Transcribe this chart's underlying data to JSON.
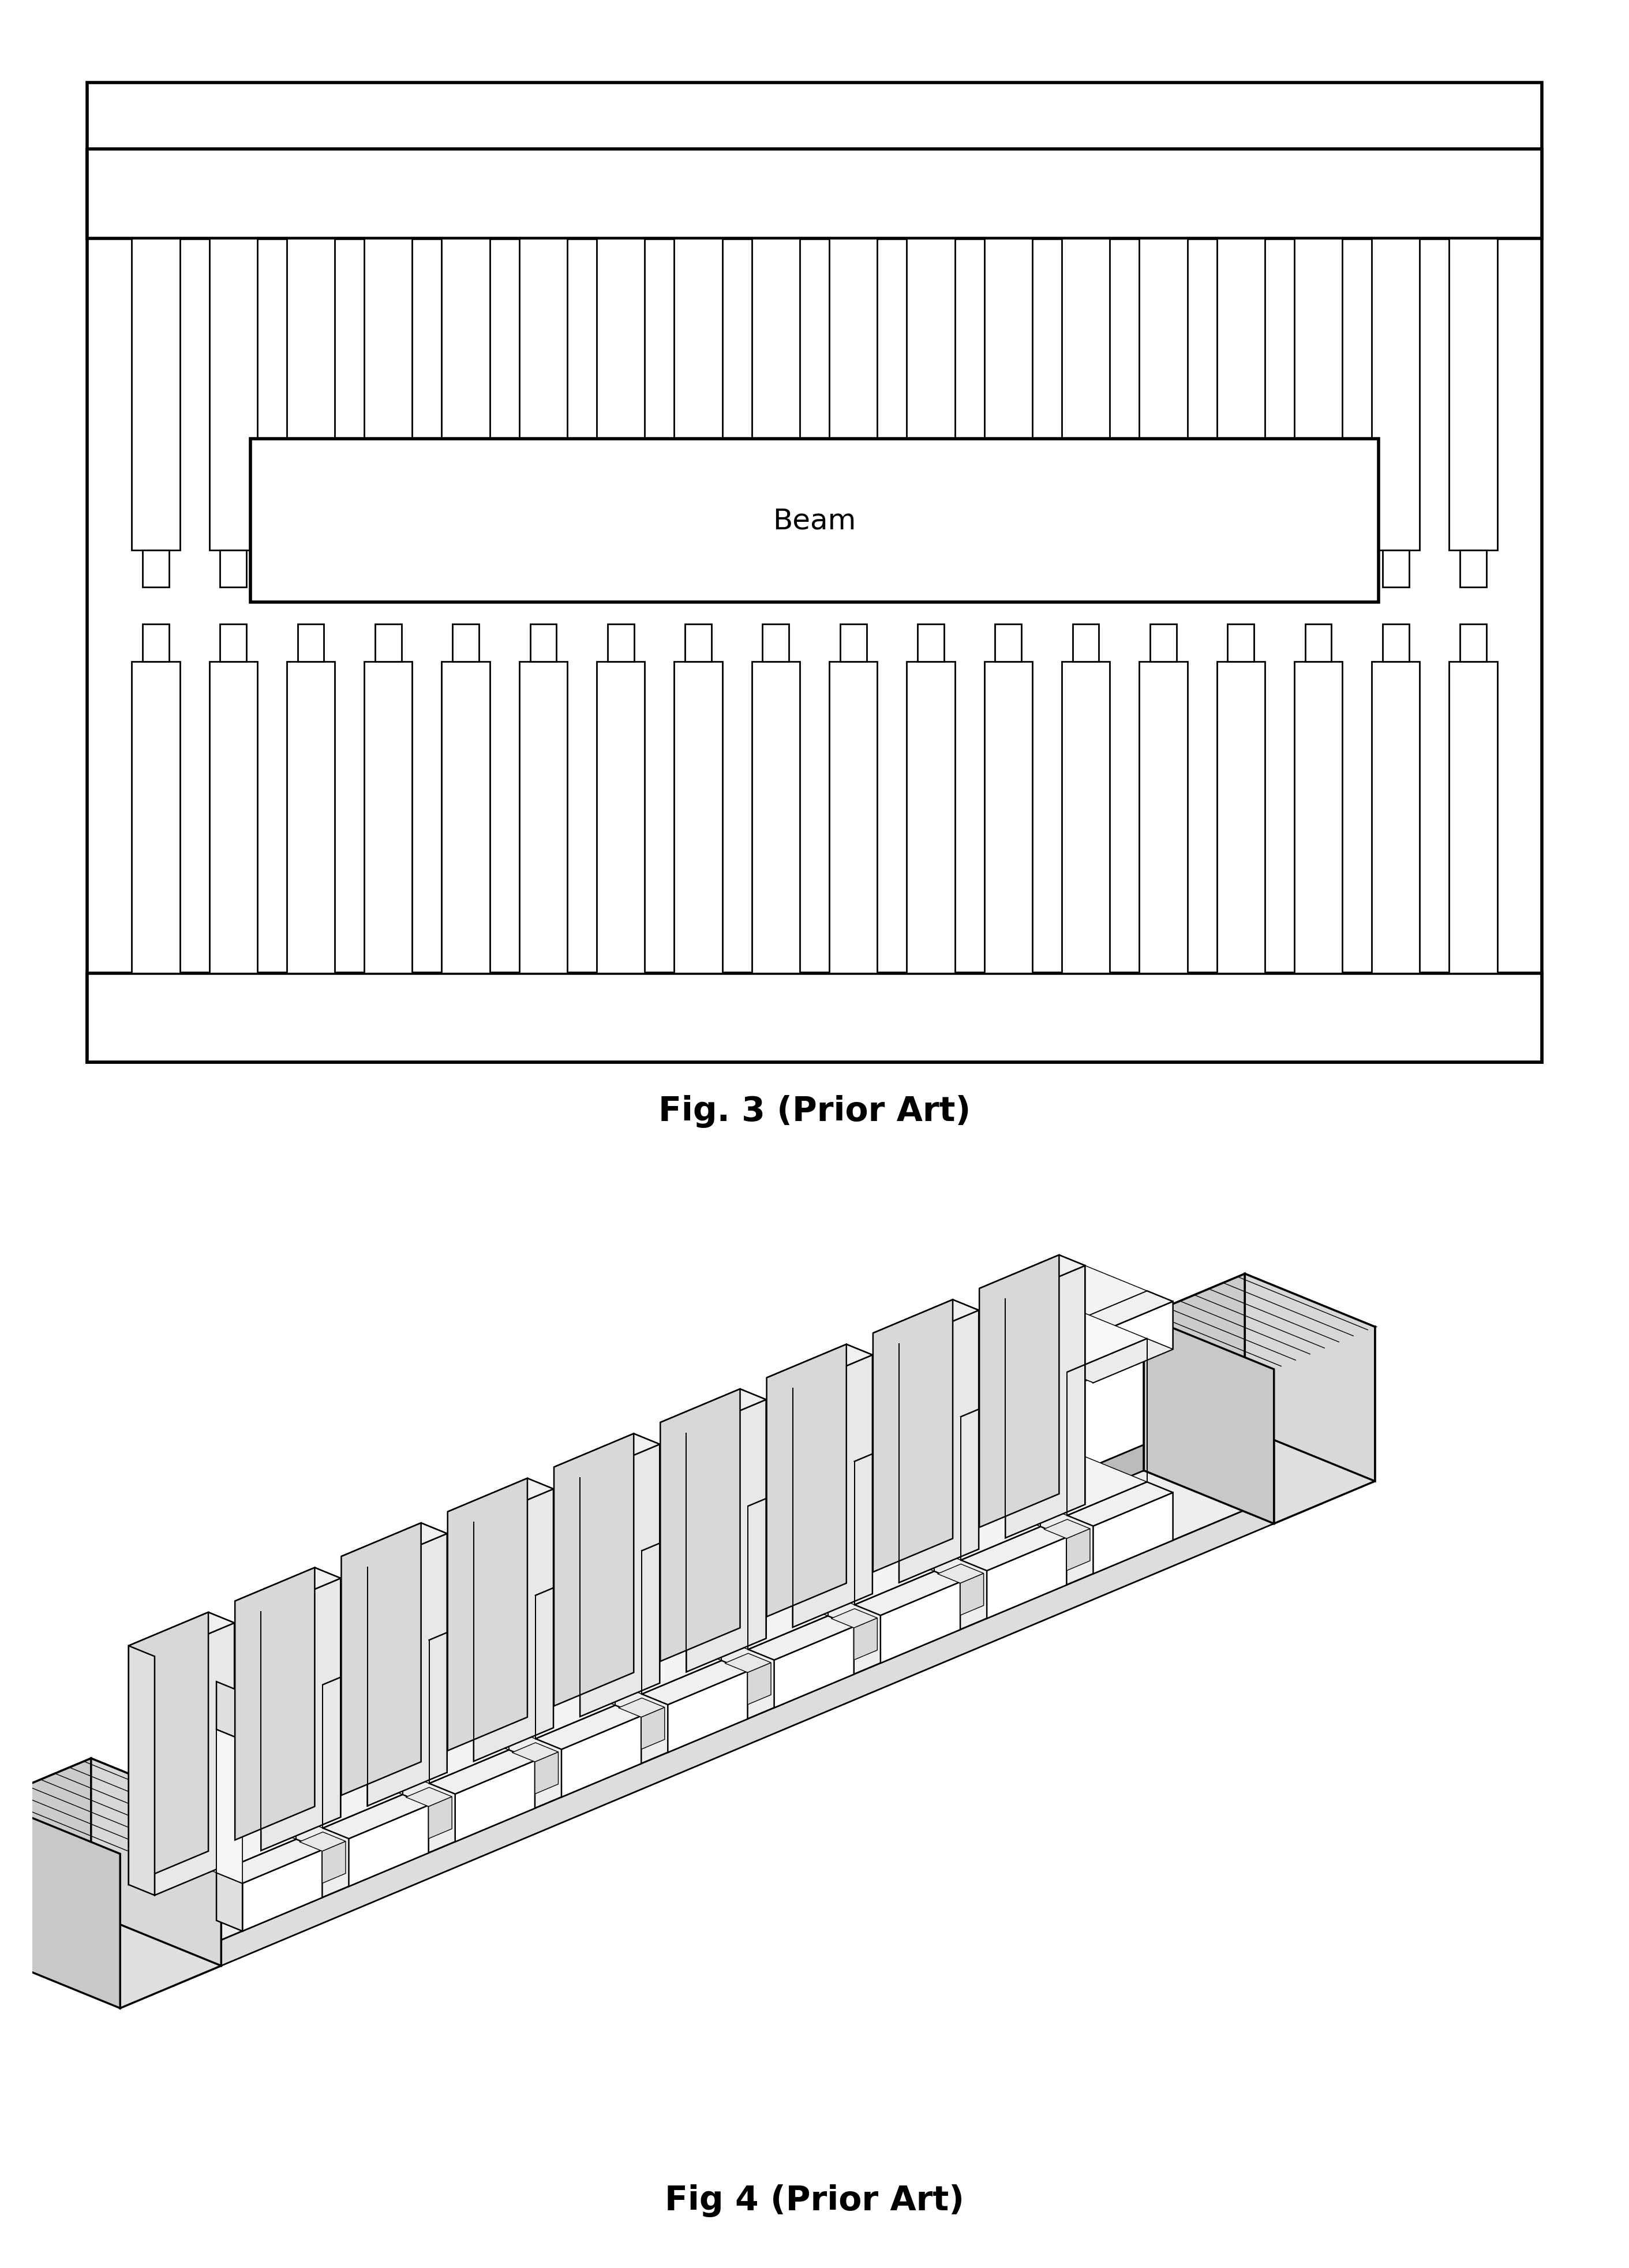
{
  "fig3_caption": "Fig. 3 (Prior Art)",
  "fig4_caption": "Fig 4 (Prior Art)",
  "beam_label": "Beam",
  "background_color": "#ffffff",
  "line_color": "#000000",
  "fig3_num_magnets": 18,
  "caption_fontsize": 42,
  "beam_text_fontsize": 36,
  "lw_outer": 4.0,
  "lw_inner": 2.0
}
